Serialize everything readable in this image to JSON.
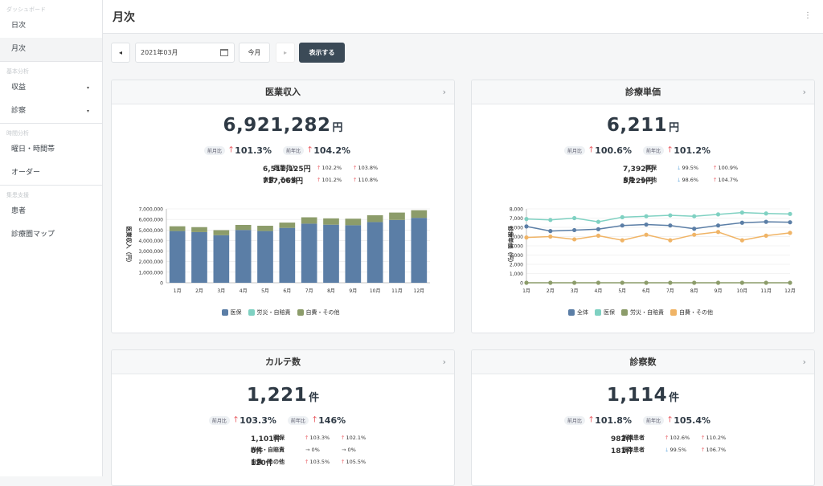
{
  "sidebar": {
    "sections": [
      {
        "title": "ダッシュボード",
        "items": [
          {
            "label": "日次"
          },
          {
            "label": "月次",
            "active": true
          }
        ]
      },
      {
        "title": "基本分析",
        "items": [
          {
            "label": "収益",
            "caret": "▾"
          },
          {
            "label": "診察",
            "caret": "▾"
          }
        ]
      },
      {
        "title": "時間分析",
        "items": [
          {
            "label": "曜日・時間帯"
          },
          {
            "label": "オーダー"
          }
        ]
      },
      {
        "title": "集患支援",
        "items": [
          {
            "label": "患者"
          },
          {
            "label": "診療圏マップ"
          }
        ]
      }
    ]
  },
  "header": {
    "title": "月次",
    "menu_glyph": "⋮"
  },
  "toolbar": {
    "prev": "◂",
    "date": "2021年03月",
    "this_month": "今月",
    "next": "▸",
    "show": "表示する"
  },
  "colors": {
    "accent": "#3b4a57",
    "up": "#e0222a",
    "down": "#4a9ad8"
  },
  "cards": {
    "revenue": {
      "title": "医業収入",
      "value": "6,921,282",
      "unit": "円",
      "mom_tag": "前月比",
      "mom": "101.3%",
      "mom_dir": "up",
      "yoy_tag": "前年比",
      "yoy": "104.2%",
      "yoy_dir": "up",
      "rows": [
        {
          "label": "医業収入",
          "value": "6,512,125円",
          "c1": "102.2%",
          "c1_dir": "up",
          "c2": "103.8%",
          "c2_dir": "up"
        },
        {
          "label": "自費・その他",
          "value": "717,063円",
          "c1": "101.2%",
          "c1_dir": "up",
          "c2": "110.8%",
          "c2_dir": "up"
        }
      ]
    },
    "unit_price": {
      "title": "診療単価",
      "value": "6,211",
      "unit": "円",
      "mom_tag": "前月比",
      "mom": "100.6%",
      "mom_dir": "up",
      "yoy_tag": "前年比",
      "yoy": "101.2%",
      "yoy_dir": "up",
      "rows": [
        {
          "label": "医保",
          "value": "7,392円",
          "c1": "99.5%",
          "c1_dir": "down",
          "c2": "100.9%",
          "c2_dir": "up"
        },
        {
          "label": "自費・その他",
          "value": "5,229円",
          "c1": "98.6%",
          "c1_dir": "down",
          "c2": "104.7%",
          "c2_dir": "up"
        }
      ]
    },
    "karte": {
      "title": "カルテ数",
      "value": "1,221",
      "unit": "件",
      "mom_tag": "前月比",
      "mom": "103.3%",
      "mom_dir": "up",
      "yoy_tag": "前年比",
      "yoy": "146%",
      "yoy_dir": "up",
      "rows": [
        {
          "label": "医保",
          "value": "1,101件",
          "c1": "103.3%",
          "c1_dir": "up",
          "c2": "102.1%",
          "c2_dir": "up"
        },
        {
          "label": "労災・自賠責",
          "value": "0件",
          "c1": "0%",
          "c1_dir": "flat",
          "c2": "0%",
          "c2_dir": "flat"
        },
        {
          "label": "自費・その他",
          "value": "120件",
          "c1": "103.5%",
          "c1_dir": "up",
          "c2": "105.5%",
          "c2_dir": "up"
        }
      ]
    },
    "visits": {
      "title": "診察数",
      "value": "1,114",
      "unit": "件",
      "mom_tag": "前月比",
      "mom": "101.8%",
      "mom_dir": "up",
      "yoy_tag": "前年比",
      "yoy": "105.4%",
      "yoy_dir": "up",
      "rows": [
        {
          "label": "新規患者",
          "value": "982件",
          "c1": "102.6%",
          "c1_dir": "up",
          "c2": "110.2%",
          "c2_dir": "up"
        },
        {
          "label": "既存患者",
          "value": "181件",
          "c1": "99.5%",
          "c1_dir": "down",
          "c2": "106.7%",
          "c2_dir": "up"
        }
      ]
    }
  },
  "chart_data": [
    {
      "type": "bar",
      "stacked": true,
      "categories": [
        "1月",
        "2月",
        "3月",
        "4月",
        "5月",
        "6月",
        "7月",
        "8月",
        "9月",
        "10月",
        "11月",
        "12月"
      ],
      "ylabel": "医業収入（円）",
      "ylim": [
        0,
        7000000
      ],
      "yticks": [
        "0",
        "1,000,000",
        "2,000,000",
        "3,000,000",
        "4,000,000",
        "5,000,000",
        "6,000,000",
        "7,000,000"
      ],
      "legend_position": "bottom",
      "series": [
        {
          "name": "医保",
          "color": "#5b7ea6",
          "values": [
            4900000,
            4800000,
            4500000,
            5000000,
            4900000,
            5200000,
            5600000,
            5500000,
            5450000,
            5750000,
            5950000,
            6150000
          ]
        },
        {
          "name": "労災・自賠責",
          "color": "#7fd1c2",
          "values": [
            0,
            0,
            0,
            0,
            0,
            0,
            0,
            0,
            0,
            0,
            0,
            0
          ]
        },
        {
          "name": "自費・その他",
          "color": "#8c9c6a",
          "values": [
            450000,
            470000,
            480000,
            480000,
            500000,
            500000,
            600000,
            600000,
            620000,
            650000,
            700000,
            720000
          ]
        }
      ]
    },
    {
      "type": "line",
      "categories": [
        "1月",
        "2月",
        "3月",
        "4月",
        "5月",
        "6月",
        "7月",
        "8月",
        "9月",
        "10月",
        "11月",
        "12月"
      ],
      "ylabel": "診療単価（円）",
      "ylim": [
        0,
        8000
      ],
      "yticks": [
        "0",
        "1,000",
        "2,000",
        "3,000",
        "4,000",
        "5,000",
        "6,000",
        "7,000",
        "8,000"
      ],
      "legend_position": "bottom",
      "series": [
        {
          "name": "全体",
          "color": "#5b7ea6",
          "values": [
            6100,
            5600,
            5700,
            5800,
            6200,
            6300,
            6200,
            5850,
            6200,
            6500,
            6600,
            6550
          ]
        },
        {
          "name": "医保",
          "color": "#7fd1c2",
          "values": [
            6900,
            6800,
            7000,
            6600,
            7100,
            7200,
            7300,
            7200,
            7400,
            7600,
            7500,
            7450
          ]
        },
        {
          "name": "労災・自賠責",
          "color": "#8c9c6a",
          "values": [
            0,
            0,
            0,
            0,
            0,
            0,
            0,
            0,
            0,
            0,
            0,
            0
          ]
        },
        {
          "name": "自費・その他",
          "color": "#f0b466",
          "values": [
            4900,
            5000,
            4700,
            5100,
            4600,
            5200,
            4600,
            5200,
            5500,
            4600,
            5100,
            5400
          ]
        }
      ]
    }
  ]
}
